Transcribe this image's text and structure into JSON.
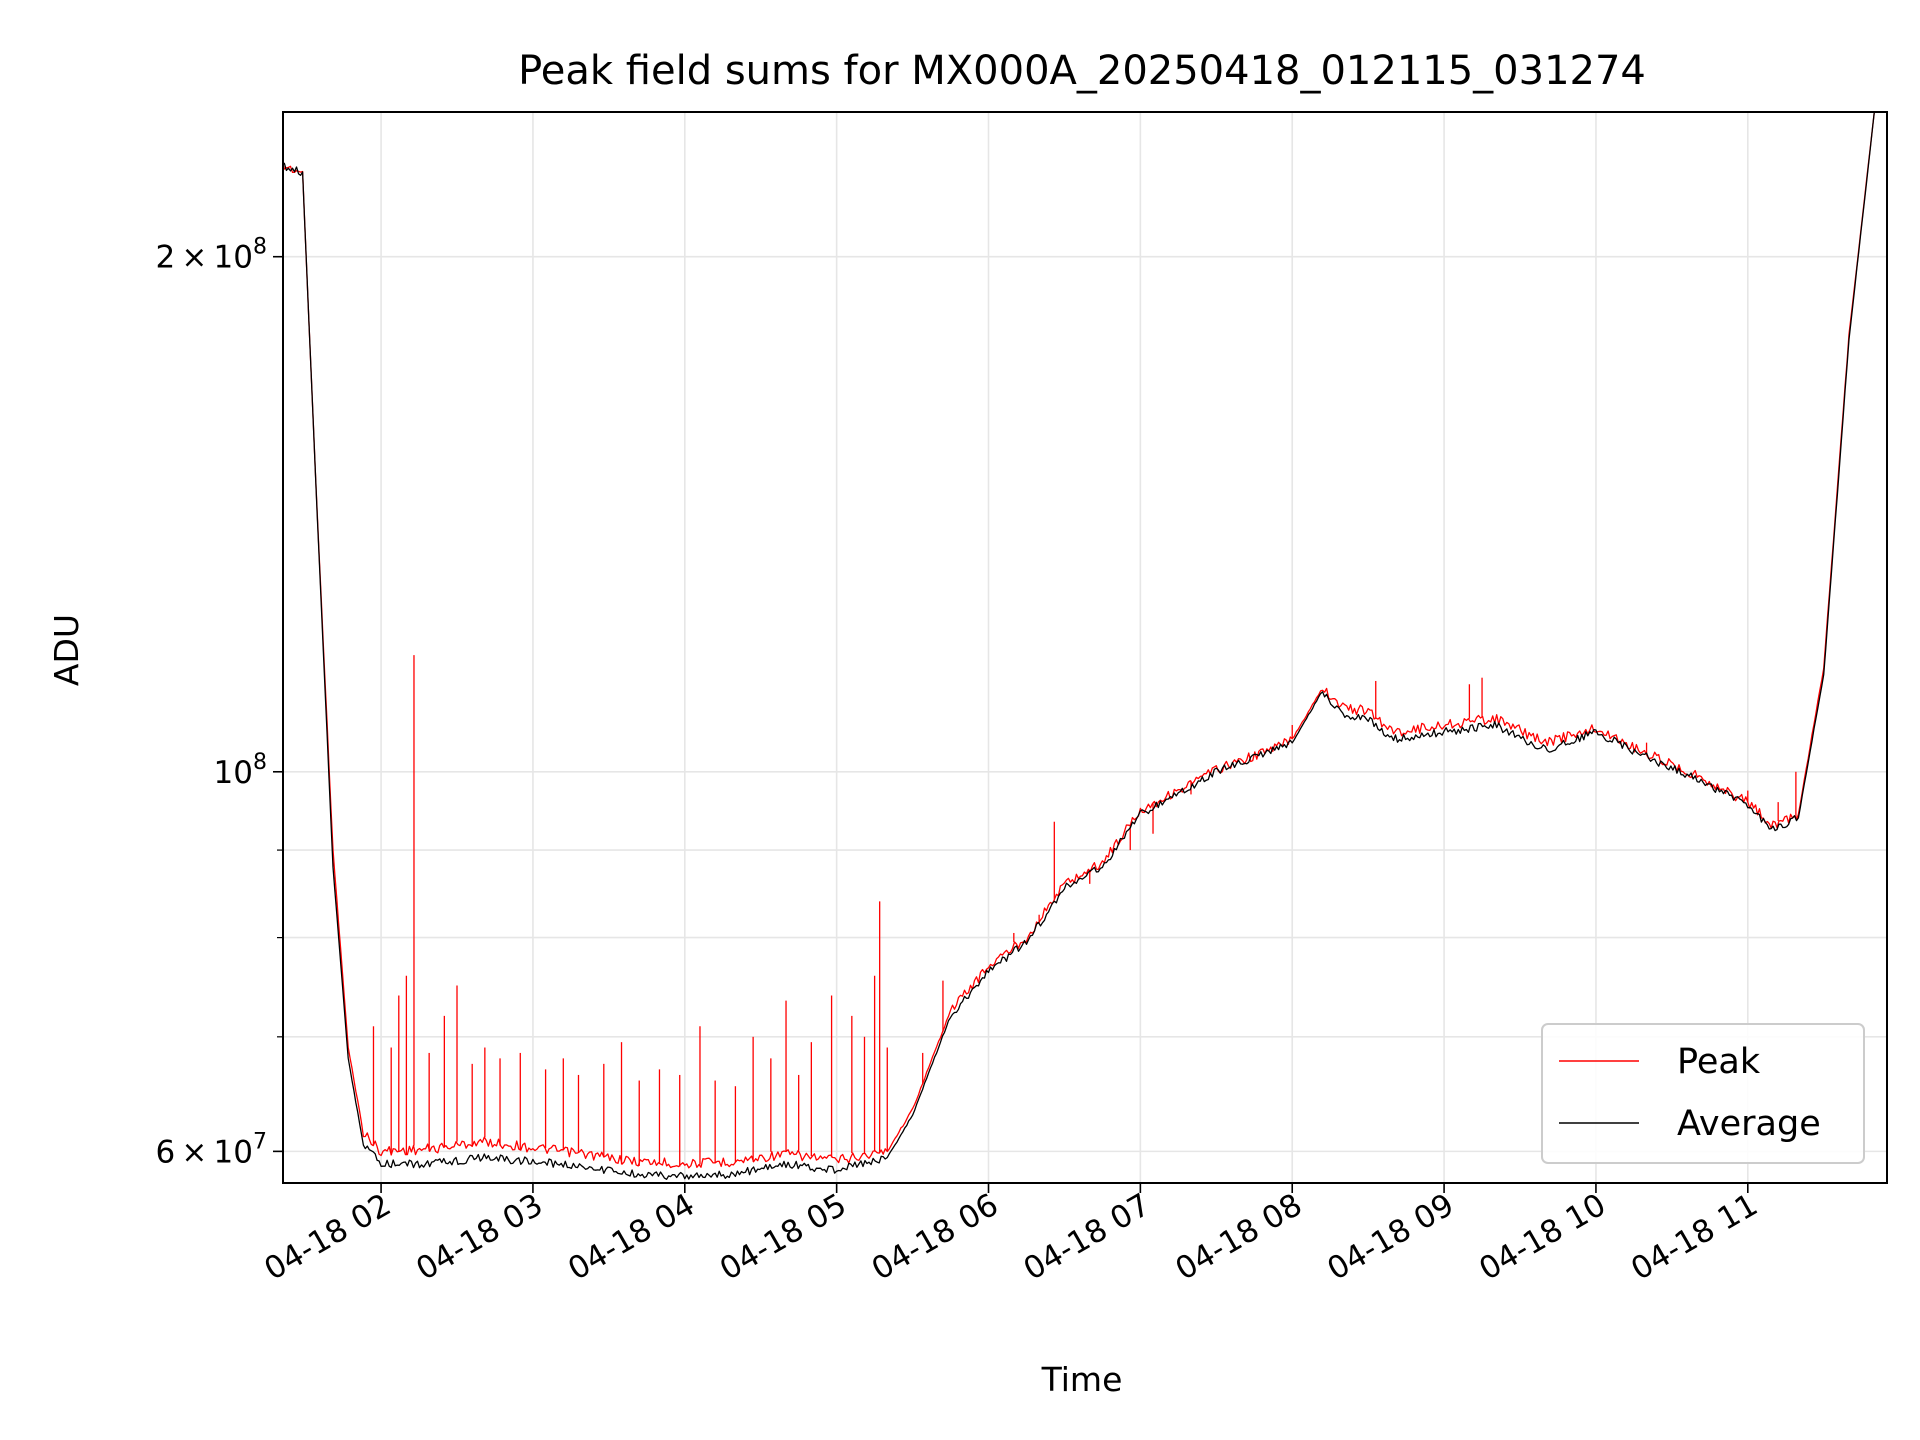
{
  "chart_data": {
    "type": "line",
    "title": "Peak field sums for MX000A_20250418_012115_031274",
    "xlabel": "Time",
    "ylabel": "ADU",
    "y_scale": "log",
    "ylim": [
      57500000,
      243000000
    ],
    "xlim": [
      "2025-04-18 01:21:15",
      "2025-04-18 11:55:00"
    ],
    "x_ticks": [
      {
        "t": "2025-04-18 02:00",
        "label": "04-18 02"
      },
      {
        "t": "2025-04-18 03:00",
        "label": "04-18 03"
      },
      {
        "t": "2025-04-18 04:00",
        "label": "04-18 04"
      },
      {
        "t": "2025-04-18 05:00",
        "label": "04-18 05"
      },
      {
        "t": "2025-04-18 06:00",
        "label": "04-18 06"
      },
      {
        "t": "2025-04-18 07:00",
        "label": "04-18 07"
      },
      {
        "t": "2025-04-18 08:00",
        "label": "04-18 08"
      },
      {
        "t": "2025-04-18 09:00",
        "label": "04-18 09"
      },
      {
        "t": "2025-04-18 10:00",
        "label": "04-18 10"
      },
      {
        "t": "2025-04-18 11:00",
        "label": "04-18 11"
      }
    ],
    "y_major_ticks": [
      {
        "value": 60000000,
        "mantissa": "6",
        "exponent": "7"
      },
      {
        "value": 100000000,
        "mantissa": "",
        "exponent": "8"
      },
      {
        "value": 200000000,
        "mantissa": "2",
        "exponent": "8"
      }
    ],
    "y_minor_ticks": [
      70000000,
      80000000,
      90000000
    ],
    "grid": true,
    "legend_position": "lower-right",
    "series": [
      {
        "name": "Peak",
        "color": "#ff0000",
        "points": [
          [
            "2025-04-18 01:21",
            226000000
          ],
          [
            "2025-04-18 01:29",
            224000000
          ],
          [
            "2025-04-18 01:34",
            150000000
          ],
          [
            "2025-04-18 01:41",
            90000000
          ],
          [
            "2025-04-18 01:47",
            69000000
          ],
          [
            "2025-04-18 01:53",
            61500000
          ],
          [
            "2025-04-18 02:00",
            60000000
          ],
          [
            "2025-04-18 02:20",
            60200000
          ],
          [
            "2025-04-18 02:40",
            60800000
          ],
          [
            "2025-04-18 03:00",
            60300000
          ],
          [
            "2025-04-18 03:20",
            59800000
          ],
          [
            "2025-04-18 03:40",
            59200000
          ],
          [
            "2025-04-18 04:00",
            59000000
          ],
          [
            "2025-04-18 04:20",
            59200000
          ],
          [
            "2025-04-18 04:40",
            59800000
          ],
          [
            "2025-04-18 05:00",
            59300000
          ],
          [
            "2025-04-18 05:20",
            60000000
          ],
          [
            "2025-04-18 05:30",
            63500000
          ],
          [
            "2025-04-18 05:45",
            72500000
          ],
          [
            "2025-04-18 06:00",
            77000000
          ],
          [
            "2025-04-18 06:15",
            80000000
          ],
          [
            "2025-04-18 06:30",
            86000000
          ],
          [
            "2025-04-18 06:45",
            88500000
          ],
          [
            "2025-04-18 07:00",
            95000000
          ],
          [
            "2025-04-18 07:15",
            97500000
          ],
          [
            "2025-04-18 07:30",
            100300000
          ],
          [
            "2025-04-18 07:50",
            102800000
          ],
          [
            "2025-04-18 08:00",
            104500000
          ],
          [
            "2025-04-18 08:12",
            112000000
          ],
          [
            "2025-04-18 08:20",
            109000000
          ],
          [
            "2025-04-18 08:30",
            108500000
          ],
          [
            "2025-04-18 08:40",
            105500000
          ],
          [
            "2025-04-18 09:00",
            106500000
          ],
          [
            "2025-04-18 09:20",
            107500000
          ],
          [
            "2025-04-18 09:40",
            104000000
          ],
          [
            "2025-04-18 10:00",
            106000000
          ],
          [
            "2025-04-18 10:20",
            102500000
          ],
          [
            "2025-04-18 10:40",
            99500000
          ],
          [
            "2025-04-18 11:00",
            96000000
          ],
          [
            "2025-04-18 11:10",
            93000000
          ],
          [
            "2025-04-18 11:20",
            94500000
          ],
          [
            "2025-04-18 11:30",
            115000000
          ],
          [
            "2025-04-18 11:40",
            180000000
          ],
          [
            "2025-04-18 11:50",
            243000000
          ]
        ],
        "spikes": [
          [
            "2025-04-18 01:57",
            71000000
          ],
          [
            "2025-04-18 02:04",
            69000000
          ],
          [
            "2025-04-18 02:07",
            74000000
          ],
          [
            "2025-04-18 02:10",
            76000000
          ],
          [
            "2025-04-18 02:13",
            117000000
          ],
          [
            "2025-04-18 02:19",
            68500000
          ],
          [
            "2025-04-18 02:25",
            72000000
          ],
          [
            "2025-04-18 02:30",
            75000000
          ],
          [
            "2025-04-18 02:36",
            67500000
          ],
          [
            "2025-04-18 02:41",
            69000000
          ],
          [
            "2025-04-18 02:47",
            68000000
          ],
          [
            "2025-04-18 02:55",
            68500000
          ],
          [
            "2025-04-18 03:05",
            67000000
          ],
          [
            "2025-04-18 03:12",
            68000000
          ],
          [
            "2025-04-18 03:18",
            66500000
          ],
          [
            "2025-04-18 03:28",
            67500000
          ],
          [
            "2025-04-18 03:35",
            69500000
          ],
          [
            "2025-04-18 03:42",
            66000000
          ],
          [
            "2025-04-18 03:50",
            67000000
          ],
          [
            "2025-04-18 03:58",
            66500000
          ],
          [
            "2025-04-18 04:06",
            71000000
          ],
          [
            "2025-04-18 04:12",
            66000000
          ],
          [
            "2025-04-18 04:20",
            65500000
          ],
          [
            "2025-04-18 04:27",
            70000000
          ],
          [
            "2025-04-18 04:34",
            68000000
          ],
          [
            "2025-04-18 04:40",
            73500000
          ],
          [
            "2025-04-18 04:45",
            66500000
          ],
          [
            "2025-04-18 04:50",
            69500000
          ],
          [
            "2025-04-18 04:58",
            74000000
          ],
          [
            "2025-04-18 05:06",
            72000000
          ],
          [
            "2025-04-18 05:11",
            70000000
          ],
          [
            "2025-04-18 05:15",
            76000000
          ],
          [
            "2025-04-18 05:17",
            84000000
          ],
          [
            "2025-04-18 05:20",
            69000000
          ],
          [
            "2025-04-18 05:34",
            68500000
          ],
          [
            "2025-04-18 05:42",
            75500000
          ],
          [
            "2025-04-18 06:10",
            80500000
          ],
          [
            "2025-04-18 06:20",
            82500000
          ],
          [
            "2025-04-18 06:26",
            93500000
          ],
          [
            "2025-04-18 06:40",
            86000000
          ],
          [
            "2025-04-18 06:56",
            90000000
          ],
          [
            "2025-04-18 07:05",
            92000000
          ],
          [
            "2025-04-18 07:20",
            97000000
          ],
          [
            "2025-04-18 08:00",
            106500000
          ],
          [
            "2025-04-18 08:33",
            113000000
          ],
          [
            "2025-04-18 09:10",
            112500000
          ],
          [
            "2025-04-18 09:15",
            113500000
          ],
          [
            "2025-04-18 10:20",
            104000000
          ],
          [
            "2025-04-18 11:00",
            97500000
          ],
          [
            "2025-04-18 11:12",
            96000000
          ],
          [
            "2025-04-18 11:19",
            100000000
          ]
        ]
      },
      {
        "name": "Average",
        "color": "#000000",
        "points": [
          [
            "2025-04-18 01:21",
            226000000
          ],
          [
            "2025-04-18 01:29",
            224000000
          ],
          [
            "2025-04-18 01:34",
            150000000
          ],
          [
            "2025-04-18 01:41",
            88000000
          ],
          [
            "2025-04-18 01:47",
            68000000
          ],
          [
            "2025-04-18 01:53",
            60500000
          ],
          [
            "2025-04-18 02:00",
            59000000
          ],
          [
            "2025-04-18 02:20",
            59000000
          ],
          [
            "2025-04-18 02:40",
            59500000
          ],
          [
            "2025-04-18 03:00",
            59200000
          ],
          [
            "2025-04-18 03:20",
            58800000
          ],
          [
            "2025-04-18 03:40",
            58200000
          ],
          [
            "2025-04-18 04:00",
            58000000
          ],
          [
            "2025-04-18 04:20",
            58200000
          ],
          [
            "2025-04-18 04:40",
            59000000
          ],
          [
            "2025-04-18 05:00",
            58500000
          ],
          [
            "2025-04-18 05:20",
            59500000
          ],
          [
            "2025-04-18 05:30",
            63000000
          ],
          [
            "2025-04-18 05:45",
            72000000
          ],
          [
            "2025-04-18 06:00",
            76500000
          ],
          [
            "2025-04-18 06:15",
            79500000
          ],
          [
            "2025-04-18 06:30",
            85500000
          ],
          [
            "2025-04-18 06:45",
            88000000
          ],
          [
            "2025-04-18 07:00",
            94500000
          ],
          [
            "2025-04-18 07:15",
            97000000
          ],
          [
            "2025-04-18 07:30",
            100000000
          ],
          [
            "2025-04-18 07:50",
            102500000
          ],
          [
            "2025-04-18 08:00",
            104000000
          ],
          [
            "2025-04-18 08:12",
            111500000
          ],
          [
            "2025-04-18 08:20",
            108000000
          ],
          [
            "2025-04-18 08:30",
            107500000
          ],
          [
            "2025-04-18 08:40",
            104500000
          ],
          [
            "2025-04-18 09:00",
            105500000
          ],
          [
            "2025-04-18 09:20",
            106500000
          ],
          [
            "2025-04-18 09:40",
            103000000
          ],
          [
            "2025-04-18 10:00",
            105500000
          ],
          [
            "2025-04-18 10:20",
            102000000
          ],
          [
            "2025-04-18 10:40",
            99000000
          ],
          [
            "2025-04-18 11:00",
            95500000
          ],
          [
            "2025-04-18 11:10",
            92500000
          ],
          [
            "2025-04-18 11:20",
            94000000
          ],
          [
            "2025-04-18 11:30",
            114000000
          ],
          [
            "2025-04-18 11:40",
            179000000
          ],
          [
            "2025-04-18 11:50",
            243000000
          ]
        ]
      }
    ]
  }
}
